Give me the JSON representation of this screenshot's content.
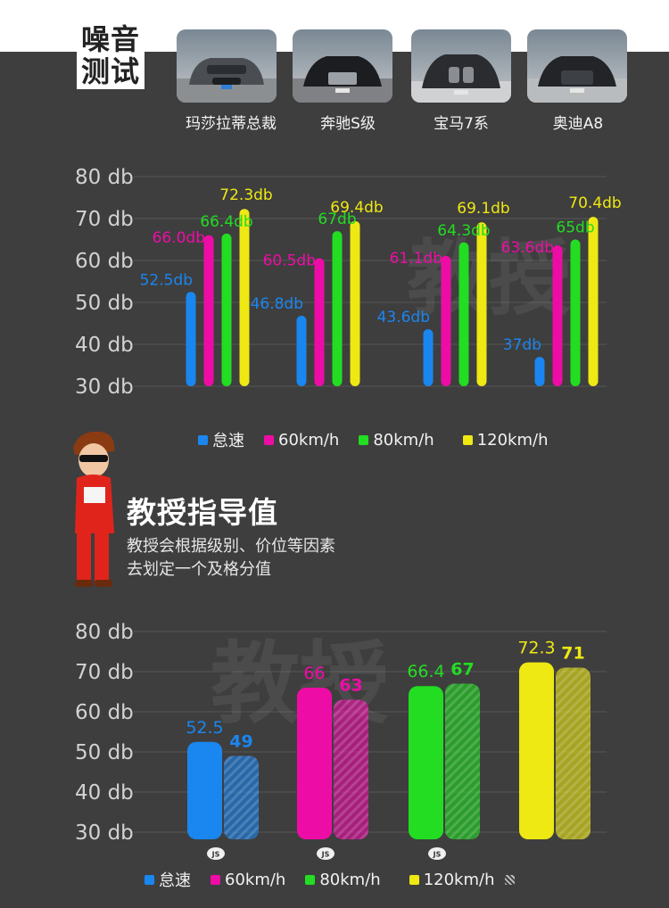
{
  "header": {
    "title_line1": "噪音",
    "title_line2": "测试",
    "cars": [
      {
        "name": "玛莎拉蒂总裁"
      },
      {
        "name": "奔驰S级"
      },
      {
        "name": "宝马7系"
      },
      {
        "name": "奥迪A8"
      }
    ]
  },
  "guide": {
    "title": "教授指导值",
    "desc_line1": "教授会根据级别、价位等因素",
    "desc_line2": "去划定一个及格分值"
  },
  "watermark_text": "教授",
  "colors": {
    "idle": "#1a86f0",
    "kmh60": "#ee0ca6",
    "kmh80": "#22dd22",
    "kmh120": "#eee813",
    "background": "#3e3e3e"
  },
  "legend1": [
    "怠速",
    "60km/h",
    "80km/h",
    "120km/h"
  ],
  "legend2": [
    "怠速",
    "60km/h",
    "80km/h",
    "120km/h"
  ],
  "chart_data": [
    {
      "type": "bar",
      "yticks": [
        "80 db",
        "70 db",
        "60 db",
        "50 db",
        "40 db",
        "30 db"
      ],
      "ylim": [
        30,
        80
      ],
      "grid": true,
      "categories": [
        "玛莎拉蒂总裁",
        "奔驰S级",
        "宝马7系",
        "奥迪A8"
      ],
      "series": [
        {
          "name": "怠速",
          "values": [
            52.5,
            46.8,
            43.6,
            37
          ],
          "labels": [
            "52.5db",
            "46.8db",
            "43.6db",
            "37db"
          ]
        },
        {
          "name": "60km/h",
          "values": [
            66.0,
            60.5,
            61.1,
            63.6
          ],
          "labels": [
            "66.0db",
            "60.5db",
            "61.1db",
            "63.6db"
          ]
        },
        {
          "name": "80km/h",
          "values": [
            66.4,
            67,
            64.3,
            65
          ],
          "labels": [
            "66.4db",
            "67db",
            "64.3db",
            "65db"
          ]
        },
        {
          "name": "120km/h",
          "values": [
            72.3,
            69.4,
            69.1,
            70.4
          ],
          "labels": [
            "72.3db",
            "69.4db",
            "69.1db",
            "70.4db"
          ]
        }
      ],
      "legend_position": "bottom"
    },
    {
      "type": "bar",
      "yticks": [
        "80 db",
        "70 db",
        "60 db",
        "50 db",
        "40 db",
        "30 db"
      ],
      "ylim": [
        30,
        80
      ],
      "grid": true,
      "groups": [
        {
          "name": "怠速",
          "measured": 52.5,
          "guide": 49,
          "measured_label": "52.5",
          "guide_label": "49",
          "badge": "JS"
        },
        {
          "name": "60km/h",
          "measured": 66,
          "guide": 63,
          "measured_label": "66",
          "guide_label": "63",
          "badge": "JS"
        },
        {
          "name": "80km/h",
          "measured": 66.4,
          "guide": 67,
          "measured_label": "66.4",
          "guide_label": "67",
          "badge": "JS"
        },
        {
          "name": "120km/h",
          "measured": 72.3,
          "guide": 71,
          "measured_label": "72.3",
          "guide_label": "71",
          "badge": ""
        }
      ],
      "legend_position": "bottom"
    }
  ]
}
